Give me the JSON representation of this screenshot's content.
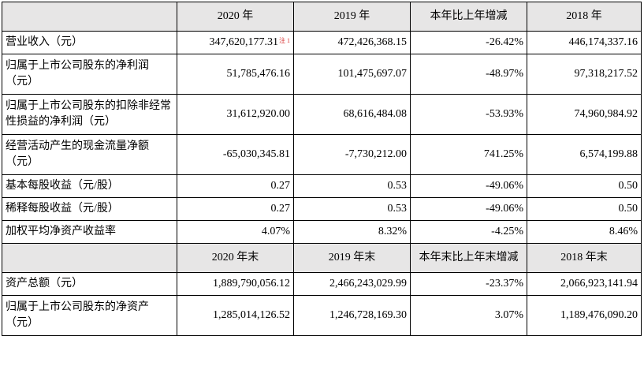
{
  "colors": {
    "header_bg": "#e7e6e6",
    "border": "#000000",
    "note": "#d62f2f"
  },
  "header1": [
    "",
    "2020 年",
    "2019 年",
    "本年比上年增减",
    "2018 年"
  ],
  "section1_rows": [
    {
      "label": "营业收入（元）",
      "c2020": "347,620,177.31",
      "note": "注 1",
      "c2019": "472,426,368.15",
      "change": "-26.42%",
      "c2018": "446,174,337.16"
    },
    {
      "label": "归属于上市公司股东的净利润（元）",
      "c2020": "51,785,476.16",
      "c2019": "101,475,697.07",
      "change": "-48.97%",
      "c2018": "97,318,217.52"
    },
    {
      "label": "归属于上市公司股东的扣除非经常性损益的净利润（元）",
      "c2020": "31,612,920.00",
      "c2019": "68,616,484.08",
      "change": "-53.93%",
      "c2018": "74,960,984.92"
    },
    {
      "label": "经营活动产生的现金流量净额（元）",
      "c2020": "-65,030,345.81",
      "c2019": "-7,730,212.00",
      "change": "741.25%",
      "c2018": "6,574,199.88"
    },
    {
      "label": "基本每股收益（元/股）",
      "c2020": "0.27",
      "c2019": "0.53",
      "change": "-49.06%",
      "c2018": "0.50"
    },
    {
      "label": "稀释每股收益（元/股）",
      "c2020": "0.27",
      "c2019": "0.53",
      "change": "-49.06%",
      "c2018": "0.50"
    },
    {
      "label": "加权平均净资产收益率",
      "c2020": "4.07%",
      "c2019": "8.32%",
      "change": "-4.25%",
      "c2018": "8.46%"
    }
  ],
  "header2": [
    "",
    "2020 年末",
    "2019 年末",
    "本年末比上年末增减",
    "2018 年末"
  ],
  "section2_rows": [
    {
      "label": "资产总额（元）",
      "c2020": "1,889,790,056.12",
      "c2019": "2,466,243,029.99",
      "change": "-23.37%",
      "c2018": "2,066,923,141.94"
    },
    {
      "label": "归属于上市公司股东的净资产（元）",
      "c2020": "1,285,014,126.52",
      "c2019": "1,246,728,169.30",
      "change": "3.07%",
      "c2018": "1,189,476,090.20"
    }
  ]
}
